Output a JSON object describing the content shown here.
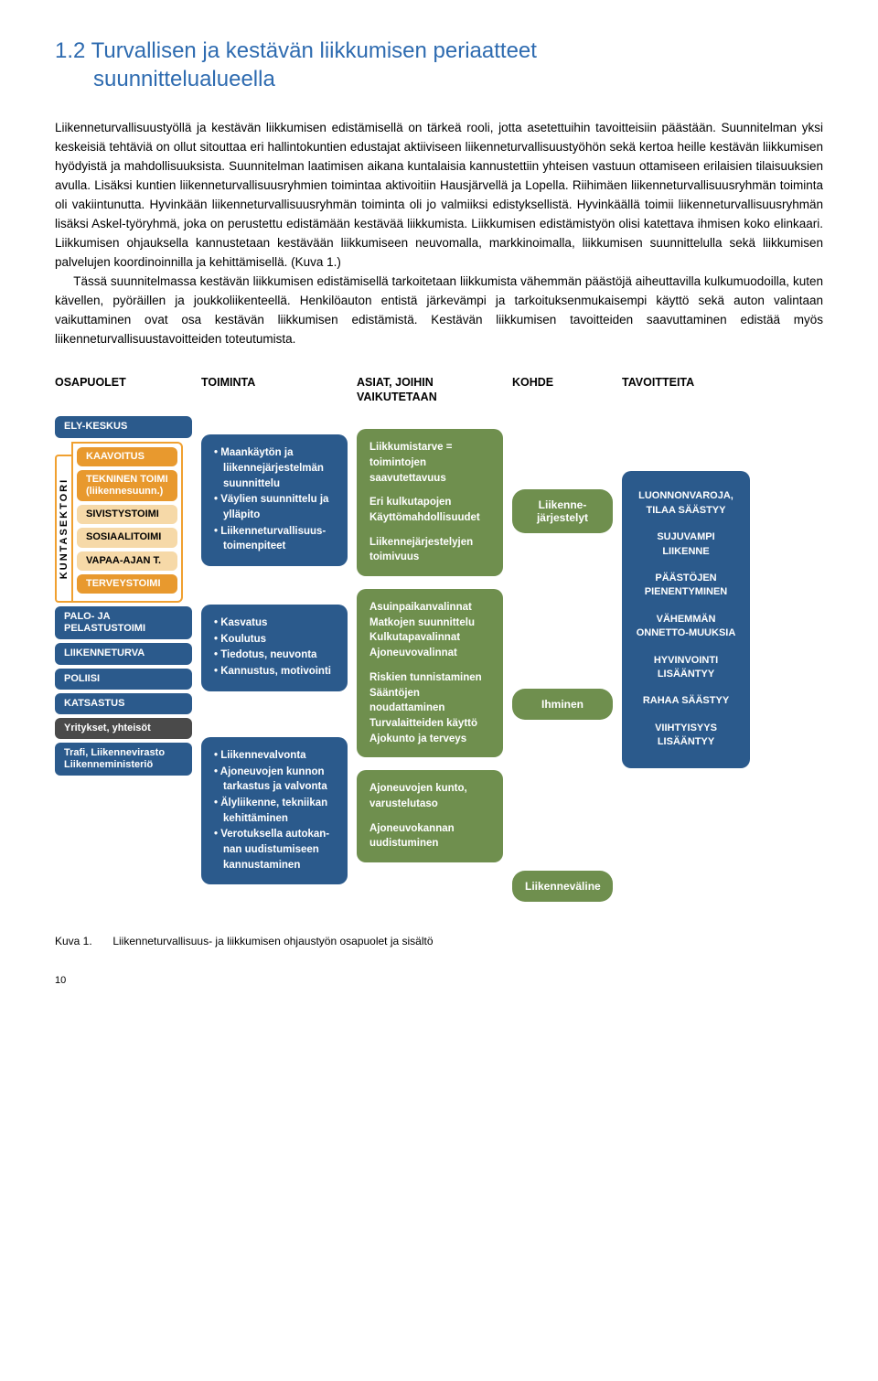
{
  "heading": {
    "number": "1.2",
    "title": "Turvallisen ja kestävän liikkumisen periaatteet",
    "subtitle": "suunnittelualueella"
  },
  "paragraphs": {
    "p1": "Liikenneturvallisuustyöllä ja kestävän liikkumisen edistämisellä on tärkeä rooli, jotta asetettuihin tavoitteisiin päästään. Suunnitelman yksi keskeisiä tehtäviä on ollut sitouttaa eri hallintokuntien edustajat aktiiviseen liikenneturvallisuustyöhön sekä kertoa heille kestävän liikkumisen hyödyistä ja mahdollisuuksista. Suunnitelman laatimisen aikana kuntalaisia kannustettiin yhteisen vastuun ottamiseen erilaisien tilaisuuksien avulla. Lisäksi kuntien liikenneturvallisuusryhmien toimintaa aktivoitiin Hausjärvellä ja Lopella. Riihimäen liikenneturvallisuusryhmän toiminta oli vakiintunutta. Hyvinkään liikenneturvallisuusryhmän toiminta oli jo valmiiksi edistyksellistä. Hyvinkäällä toimii liikenneturvallisuusryhmän lisäksi Askel-työryhmä, joka on perustettu edistämään kestävää liikkumista. Liikkumisen edistämistyön olisi katettava ihmisen koko elinkaari. Liikkumisen ohjauksella kannustetaan kestävään liikkumiseen neuvomalla, markkinoimalla, liikkumisen suunnittelulla sekä liikkumisen palvelujen koordinoinnilla ja kehittämisellä. (Kuva 1.)",
    "p2": "Tässä suunnitelmassa kestävän liikkumisen edistämisellä tarkoitetaan liikkumista vähemmän päästöjä aiheuttavilla kulkumuodoilla, kuten kävellen, pyöräillen ja joukkoliikenteellä. Henkilöauton entistä järkevämpi ja tarkoituksenmukaisempi käyttö sekä auton valintaan vaikuttaminen ovat osa kestävän liikkumisen edistämistä. Kestävän liikkumisen tavoitteiden saavuttaminen edistää myös liikenneturvallisuustavoitteiden toteutumista."
  },
  "diagram": {
    "headers": {
      "osapuolet": "OSAPUOLET",
      "toiminta": "TOIMINTA",
      "asiat": "ASIAT, JOIHIN VAIKUTETAAN",
      "kohde": "KOHDE",
      "tavoitteita": "TAVOITTEITA"
    },
    "bracket": "KUNTASEKTORI",
    "osapuolet": {
      "top": {
        "label": "ELY-KESKUS",
        "color": "#2b5a8c"
      },
      "kunta": [
        {
          "label": "KAAVOITUS",
          "color": "#e8992e"
        },
        {
          "label": "TEKNINEN  TOIMI\n(liikennesuunn.)",
          "color": "#e8992e"
        },
        {
          "label": "SIVISTYSTOIMI",
          "color": "#f6d9a8",
          "text": "#000"
        },
        {
          "label": "SOSIAALITOIMI",
          "color": "#f6d9a8",
          "text": "#000"
        },
        {
          "label": "VAPAA-AJAN T.",
          "color": "#f6d9a8",
          "text": "#000"
        },
        {
          "label": "TERVEYSTOIMI",
          "color": "#e8992e"
        }
      ],
      "bottom": [
        {
          "label": "PALO- JA\nPELASTUSTOIMI",
          "color": "#2b5a8c"
        },
        {
          "label": "LIIKENNETURVA",
          "color": "#2b5a8c"
        },
        {
          "label": "POLIISI",
          "color": "#2b5a8c"
        },
        {
          "label": "KATSASTUS",
          "color": "#2b5a8c"
        },
        {
          "label": "Yritykset, yhteisöt",
          "color": "#4a4a4a"
        },
        {
          "label": "Trafi, Liikennevirasto\nLiikenneministeriö",
          "color": "#2b5a8c"
        }
      ]
    },
    "toiminta": [
      [
        "Maankäytön ja liikennejärjestelmän suunnittelu",
        "Väylien suunnittelu ja ylläpito",
        "Liikenneturvallisuus-toimenpiteet"
      ],
      [
        "Kasvatus",
        "Koulutus",
        "Tiedotus, neuvonta",
        "Kannustus, motivointi"
      ],
      [
        "Liikennevalvonta",
        "Ajoneuvojen kunnon tarkastus ja valvonta",
        "Älyliikenne, tekniikan kehittäminen",
        "Verotuksella autokan-nan uudistumiseen kannustaminen"
      ]
    ],
    "asiat": [
      {
        "lines": [
          "Liikkumistarve = toimintojen saavutettavuus",
          "Eri kulkutapojen Käyttömahdollisuudet",
          "Liikennejärjestelyjen toimivuus"
        ]
      },
      {
        "lines": [
          "Asuinpaikanvalinnat Matkojen suunnittelu Kulkutapavalinnat Ajoneuvovalinnat",
          "Riskien tunnistaminen Sääntöjen noudattaminen Turvalaitteiden käyttö Ajokunto ja terveys"
        ]
      },
      {
        "lines": [
          "Ajoneuvojen kunto, varustelutaso",
          "Ajoneuvokannan uudistuminen"
        ]
      }
    ],
    "kohde": [
      "Liikenne-järjestelyt",
      "Ihminen",
      "Liikenneväline"
    ],
    "tavoitteita": [
      "LUONNONVAROJA, TILAA SÄÄSTYY",
      "SUJUVAMPI LIIKENNE",
      "PÄÄSTÖJEN PIENENTYMINEN",
      "VÄHEMMÄN ONNETTO-MUUKSIA",
      "HYVINVOINTI LISÄÄNTYY",
      "RAHAA SÄÄSTYY",
      "VIIHTYISYYS LISÄÄNTYY"
    ],
    "colors": {
      "green": "#6f8f4e",
      "blue": "#2b5a8c",
      "orange": "#e8992e",
      "orange_light": "#f6d9a8",
      "gray": "#4a4a4a"
    }
  },
  "caption": {
    "label": "Kuva 1.",
    "text": "Liikenneturvallisuus- ja liikkumisen ohjaustyön osapuolet ja sisältö"
  },
  "pagenum": "10"
}
